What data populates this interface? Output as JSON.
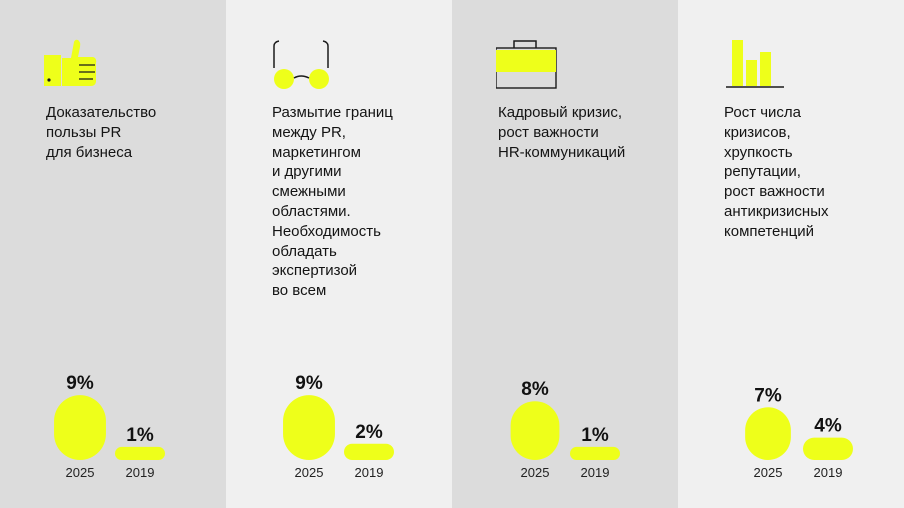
{
  "colors": {
    "accent": "#eeff1a",
    "panel_dark": "#dcdcdc",
    "panel_light": "#f0f0f0",
    "icon_line": "#1a1a1a"
  },
  "panels": [
    {
      "icon": "thumbs-up-icon",
      "text": "Доказательство\nпользы PR\nдля бизнеса"
    },
    {
      "icon": "glasses-icon",
      "text": "Размытие границ\nмежду PR,\nмаркетингом\nи другими\nсмежными\nобластями.\nНеобходимость\nобладать\nэкспертизой\nво всем"
    },
    {
      "icon": "briefcase-icon",
      "text": "Кадровый кризис,\nрост важности\nHR-коммуникаций"
    },
    {
      "icon": "bar-chart-icon",
      "text": "Рост числа\nкризисов,\nхрупкость\nрепутации,\nрост важности\nантикризисных\nкомпетенций"
    }
  ],
  "chart_data": {
    "type": "bar",
    "categories": [
      "Доказательство пользы PR для бизнеса",
      "Размытие границ между PR, маркетингом и другими смежными областями. Необходимость обладать экспертизой во всем",
      "Кадровый кризис, рост важности HR-коммуникаций",
      "Рост числа кризисов, хрупкость репутации, рост важности антикризисных компетенций"
    ],
    "series": [
      {
        "name": "2025",
        "values": [
          9,
          9,
          8,
          7
        ],
        "labels": [
          "9%",
          "9%",
          "8%",
          "7%"
        ]
      },
      {
        "name": "2019",
        "values": [
          1,
          2,
          1,
          4
        ],
        "labels": [
          "1%",
          "2%",
          "1%",
          "4%"
        ]
      }
    ],
    "unit": "%",
    "legend": "none"
  }
}
